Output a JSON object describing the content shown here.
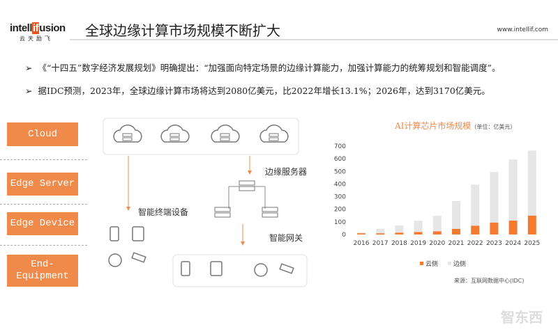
{
  "header": {
    "logo_text_pre": "intell",
    "logo_text_if": "if",
    "logo_text_post": "usion",
    "logo_sub": "云天励飞",
    "title": "全球边缘计算市场规模不断扩大",
    "website": "www.intellif.com"
  },
  "bullets": [
    {
      "arrow": "➢",
      "text": "《“十四五”数字经济发展规划》明确提出：“加强面向特定场景的边缘计算能力，加强计算能力的统筹规划和智能调度”。"
    },
    {
      "arrow": "➢",
      "text": "据IDC预测，2023年，全球边缘计算市场将达到2080亿美元，比2022年增长13.1%；2026年，达到3170亿美元。"
    }
  ],
  "diagram": {
    "layers": [
      "Cloud",
      "Edge Server",
      "Edge Device",
      "End-\nEquipment"
    ],
    "edge_server_label": "边缘服务器",
    "edge_device_label": "智能终端设备",
    "gateway_label": "智能网关",
    "accent": "#f08a4b"
  },
  "chart_data": {
    "type": "bar",
    "stacked": true,
    "title": "AI计算芯片市场规模",
    "subtitle": "（单位：亿美元）",
    "categories": [
      "2016",
      "2017",
      "2018",
      "2019",
      "2020",
      "2021",
      "2022",
      "2023",
      "2024",
      "2025"
    ],
    "series": [
      {
        "name": "云侧",
        "color": "#f47a30",
        "values": [
          10,
          10,
          15,
          20,
          25,
          45,
          70,
          95,
          110,
          150
        ]
      },
      {
        "name": "边侧",
        "color": "#e6e6e6",
        "values": [
          5,
          35,
          57,
          90,
          123,
          220,
          325,
          400,
          485,
          515
        ]
      }
    ],
    "ylim": [
      0,
      700
    ],
    "yticks": [
      "0",
      "100",
      "200",
      "300",
      "400",
      "500",
      "600",
      "700"
    ],
    "legend": "bottom",
    "grid": false,
    "source": "来源：互联网数据中心(IDC)"
  },
  "watermark": "智东西"
}
